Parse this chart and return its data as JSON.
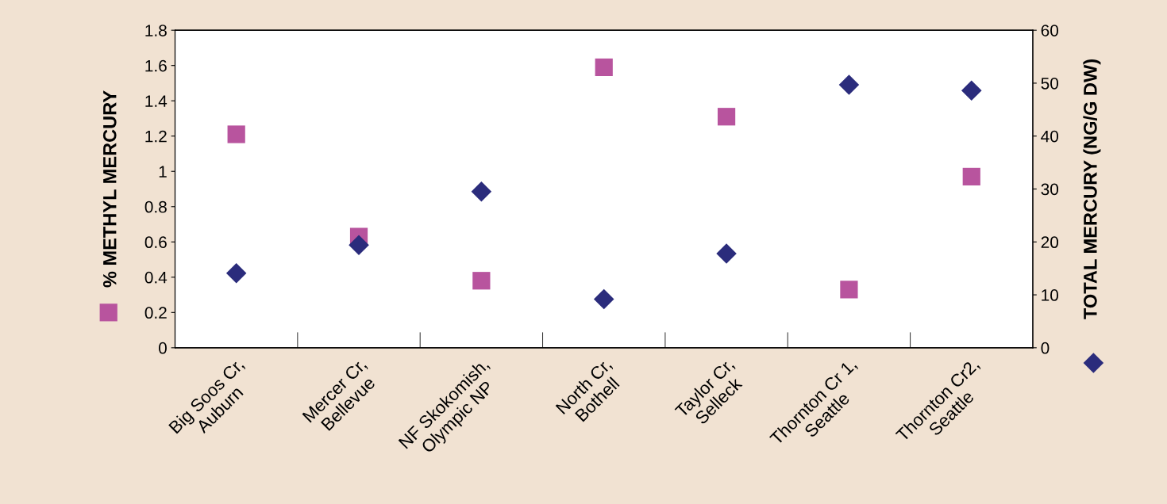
{
  "chart_data": {
    "type": "scatter",
    "ylabel": "% METHYL MERCURY",
    "y2label": "TOTAL MERCURY (NG/G DW)",
    "categories": [
      "Big Soos Cr,\nAuburn",
      "Mercer Cr,\nBellevue",
      "NF Skokomish,\nOlympic NP",
      "North Cr,\nBothell",
      "Taylor Cr,\nSelleck",
      "Thornton Cr 1,\nSeattle",
      "Thornton Cr2,\nSeattle"
    ],
    "series": [
      {
        "color": "#b8549e",
        "marker": "square",
        "values": [
          1.21,
          0.63,
          0.38,
          1.59,
          1.31,
          0.33,
          0.97
        ]
      },
      {
        "color": "#2b2c7c",
        "marker": "diamond",
        "axis": "y2",
        "values": [
          14.1,
          19.4,
          29.5,
          9.2,
          17.8,
          49.7,
          48.6
        ]
      }
    ],
    "ylim": [
      0,
      1.8
    ],
    "yticks": [
      0,
      0.2,
      0.4,
      0.6,
      0.8,
      1,
      1.2,
      1.4,
      1.6,
      1.8
    ],
    "y2lim": [
      0,
      60
    ],
    "y2ticks": [
      0,
      10,
      20,
      30,
      40,
      50,
      60
    ],
    "grid": false,
    "legend": false
  }
}
